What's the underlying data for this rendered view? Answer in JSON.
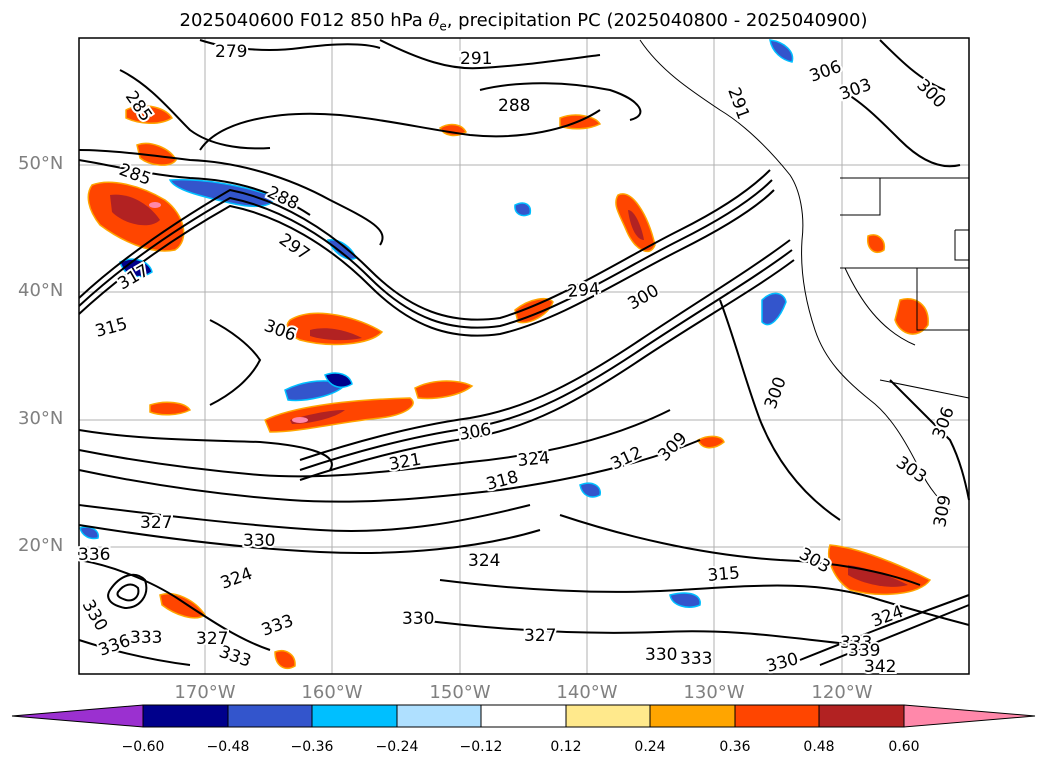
{
  "title": {
    "prefix": "2025040600 F012 850 hPa ",
    "theta_symbol": "θ",
    "theta_subscript": "e",
    "suffix": ", precipitation PC (2025040800 - 2025040900)"
  },
  "latitude_labels": [
    "50°N",
    "40°N",
    "30°N",
    "20°N"
  ],
  "longitude_labels": [
    "170°W",
    "160°W",
    "150°W",
    "140°W",
    "130°W",
    "120°W"
  ],
  "colorbar": {
    "ticks": [
      "−0.60",
      "−0.48",
      "−0.36",
      "−0.24",
      "−0.12",
      "0.12",
      "0.24",
      "0.36",
      "0.48",
      "0.60"
    ],
    "colors": [
      "#9b30d0",
      "#00008b",
      "#3355cc",
      "#00bfff",
      "#afe0ff",
      "#ffffff",
      "#ffe98c",
      "#ffa500",
      "#ff4500",
      "#b22222",
      "#ff88aa"
    ]
  },
  "contour_labels": [
    "279",
    "291",
    "285",
    "288",
    "285",
    "288",
    "291",
    "306",
    "303",
    "300",
    "297",
    "294",
    "300",
    "315",
    "306",
    "317",
    "300",
    "306",
    "309",
    "312",
    "324",
    "318",
    "321",
    "303",
    "306",
    "309",
    "327",
    "330",
    "324",
    "333",
    "336",
    "333",
    "327",
    "324",
    "333",
    "330",
    "330",
    "333",
    "315",
    "327",
    "324",
    "333",
    "330",
    "339",
    "342",
    "336",
    "330",
    "303"
  ],
  "map_style": {
    "land_border_color": "#000000",
    "contour_color": "#000000",
    "grid_color": "#b0b0b0",
    "frame_color": "#000000",
    "background": "#ffffff"
  }
}
